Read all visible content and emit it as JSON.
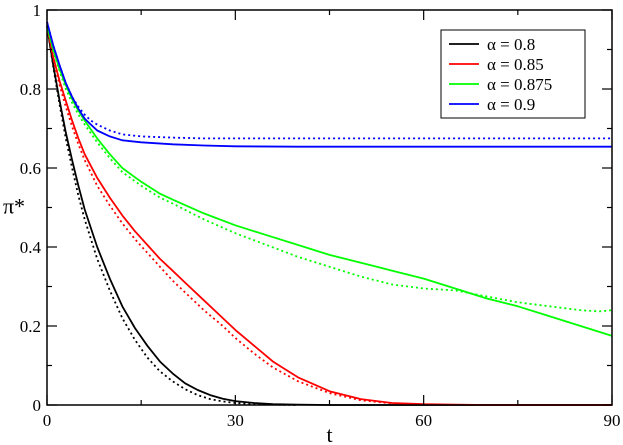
{
  "chart_data": {
    "type": "line",
    "xlabel": "t",
    "ylabel": "π*",
    "xlim": [
      0,
      90
    ],
    "ylim": [
      0,
      1
    ],
    "x_ticks": [
      0,
      30,
      60,
      90
    ],
    "y_ticks": [
      0,
      0.2,
      0.4,
      0.6,
      0.8,
      1
    ],
    "x_tick_labels": [
      "0",
      "30",
      "60",
      "90"
    ],
    "y_tick_labels": [
      "0",
      "0.2",
      "0.4",
      "0.6",
      "0.8",
      "1"
    ],
    "grid": false,
    "legend_position": "top-right",
    "series": [
      {
        "name": "α = 0.8",
        "color": "#000000",
        "solid": {
          "x": [
            0,
            1,
            2,
            3,
            4,
            5,
            6,
            8,
            10,
            12,
            14,
            16,
            18,
            20,
            22,
            24,
            26,
            28,
            30,
            33,
            36,
            40,
            45,
            50,
            55,
            60,
            70,
            80,
            90
          ],
          "y": [
            0.96,
            0.86,
            0.77,
            0.69,
            0.62,
            0.555,
            0.495,
            0.4,
            0.32,
            0.25,
            0.195,
            0.15,
            0.11,
            0.08,
            0.055,
            0.038,
            0.025,
            0.016,
            0.01,
            0.005,
            0.002,
            0.001,
            0.0,
            0.0,
            0.0,
            0.0,
            0.0,
            0.0,
            0.0
          ]
        },
        "dotted": {
          "x": [
            0,
            1,
            2,
            3,
            4,
            5,
            6,
            8,
            10,
            12,
            14,
            16,
            18,
            20,
            22,
            24,
            26,
            28,
            30,
            33,
            36,
            40
          ],
          "y": [
            0.96,
            0.855,
            0.76,
            0.675,
            0.6,
            0.53,
            0.47,
            0.37,
            0.29,
            0.22,
            0.165,
            0.12,
            0.085,
            0.06,
            0.04,
            0.025,
            0.015,
            0.009,
            0.005,
            0.002,
            0.001,
            0.0
          ]
        }
      },
      {
        "name": "α = 0.85",
        "color": "#ff0000",
        "solid": {
          "x": [
            0,
            1,
            2,
            3,
            4,
            5,
            6,
            8,
            10,
            12,
            14,
            16,
            18,
            20,
            22,
            25,
            28,
            30,
            33,
            36,
            40,
            45,
            50,
            55,
            60,
            65,
            70,
            80,
            90
          ],
          "y": [
            0.96,
            0.88,
            0.82,
            0.77,
            0.72,
            0.675,
            0.635,
            0.575,
            0.525,
            0.48,
            0.44,
            0.405,
            0.37,
            0.34,
            0.31,
            0.265,
            0.22,
            0.19,
            0.15,
            0.11,
            0.07,
            0.035,
            0.015,
            0.005,
            0.002,
            0.001,
            0.0,
            0.0,
            0.0
          ]
        },
        "dotted": {
          "x": [
            0,
            1,
            2,
            3,
            4,
            5,
            6,
            8,
            10,
            12,
            14,
            16,
            18,
            20,
            22,
            25,
            28,
            30,
            33,
            36,
            40,
            45,
            50,
            55,
            60,
            65
          ],
          "y": [
            0.96,
            0.875,
            0.81,
            0.755,
            0.705,
            0.66,
            0.62,
            0.555,
            0.505,
            0.46,
            0.42,
            0.385,
            0.35,
            0.315,
            0.285,
            0.24,
            0.2,
            0.17,
            0.13,
            0.095,
            0.06,
            0.03,
            0.012,
            0.004,
            0.001,
            0.0
          ]
        }
      },
      {
        "name": "α = 0.875",
        "color": "#00ff00",
        "solid": {
          "x": [
            0,
            1,
            2,
            3,
            4,
            5,
            6,
            8,
            10,
            12,
            15,
            18,
            20,
            25,
            30,
            35,
            40,
            45,
            50,
            55,
            60,
            65,
            70,
            75,
            80,
            85,
            90
          ],
          "y": [
            0.96,
            0.9,
            0.85,
            0.81,
            0.775,
            0.745,
            0.72,
            0.675,
            0.635,
            0.6,
            0.565,
            0.535,
            0.52,
            0.485,
            0.455,
            0.43,
            0.405,
            0.38,
            0.36,
            0.34,
            0.32,
            0.295,
            0.27,
            0.25,
            0.225,
            0.2,
            0.175
          ]
        },
        "dotted": {
          "x": [
            0,
            1,
            2,
            3,
            4,
            5,
            6,
            8,
            10,
            12,
            15,
            18,
            20,
            25,
            30,
            35,
            40,
            45,
            50,
            55,
            60,
            65,
            70,
            75,
            80,
            85,
            88,
            90
          ],
          "y": [
            0.96,
            0.895,
            0.845,
            0.8,
            0.765,
            0.735,
            0.71,
            0.665,
            0.625,
            0.59,
            0.555,
            0.525,
            0.51,
            0.47,
            0.435,
            0.405,
            0.375,
            0.35,
            0.325,
            0.305,
            0.295,
            0.29,
            0.275,
            0.26,
            0.25,
            0.24,
            0.237,
            0.24
          ]
        }
      },
      {
        "name": "α = 0.9",
        "color": "#0000ff",
        "solid": {
          "x": [
            0,
            1,
            2,
            3,
            4,
            5,
            6,
            7,
            8,
            10,
            12,
            15,
            20,
            25,
            30,
            40,
            50,
            60,
            70,
            80,
            90
          ],
          "y": [
            0.97,
            0.91,
            0.86,
            0.815,
            0.78,
            0.75,
            0.725,
            0.71,
            0.695,
            0.68,
            0.67,
            0.665,
            0.66,
            0.657,
            0.655,
            0.654,
            0.654,
            0.654,
            0.654,
            0.654,
            0.654
          ]
        },
        "dotted": {
          "x": [
            0,
            1,
            2,
            3,
            4,
            5,
            6,
            7,
            8,
            10,
            12,
            15,
            20,
            25,
            30,
            40,
            50,
            60,
            70,
            80,
            90
          ],
          "y": [
            0.97,
            0.91,
            0.86,
            0.815,
            0.78,
            0.755,
            0.735,
            0.72,
            0.71,
            0.695,
            0.685,
            0.68,
            0.677,
            0.675,
            0.675,
            0.675,
            0.675,
            0.675,
            0.675,
            0.675,
            0.675
          ]
        }
      }
    ]
  }
}
